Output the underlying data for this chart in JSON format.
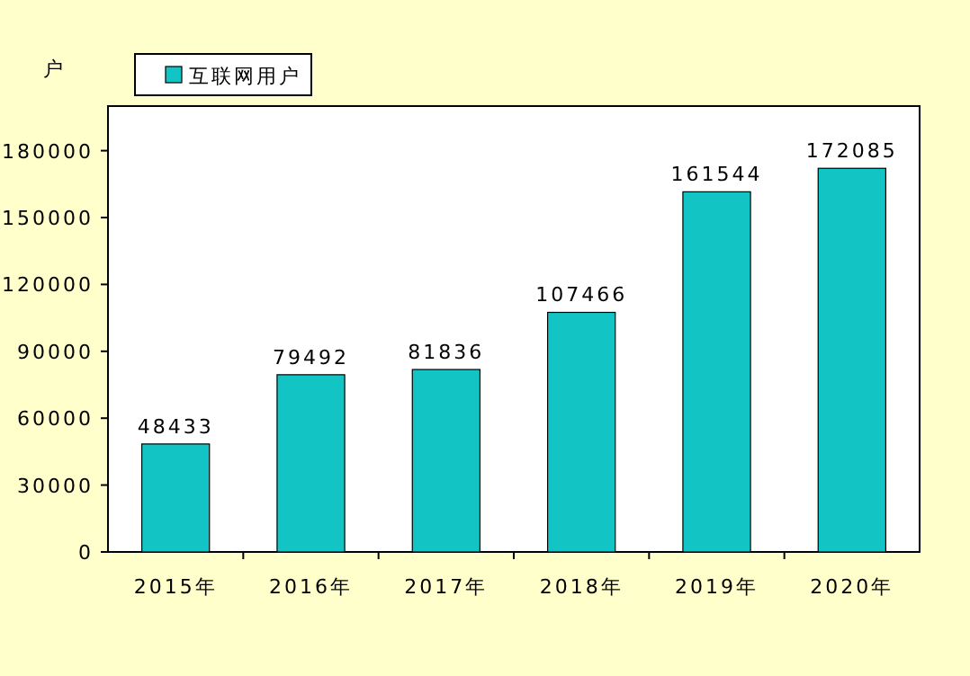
{
  "chart_data": {
    "type": "bar",
    "ylabel": "户",
    "categories": [
      "2015年",
      "2016年",
      "2017年",
      "2018年",
      "2019年",
      "2020年"
    ],
    "series": [
      {
        "name": "互联网用户",
        "color": "#12c4c4",
        "values": [
          48433,
          79492,
          81836,
          107466,
          161544,
          172085
        ]
      }
    ],
    "ylim": [
      0,
      200000
    ],
    "yticks": [
      0,
      30000,
      60000,
      90000,
      120000,
      150000,
      180000
    ],
    "data_labels": true,
    "legend": "top left",
    "grid": false
  }
}
